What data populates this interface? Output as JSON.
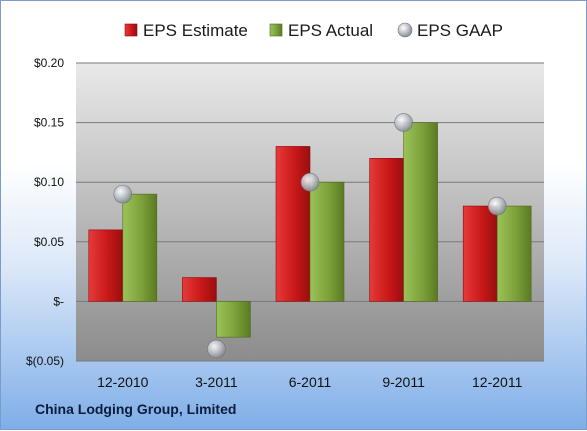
{
  "footer": {
    "company": "China Lodging Group, Limited"
  },
  "colors": {
    "estimate": "#cc1f1f",
    "actual": "#7da33a",
    "gaap": "#b8bcc4",
    "plot_bg_top": "#e9e9e9",
    "plot_bg_bottom": "#8c8c8c"
  },
  "chart_data": {
    "type": "bar",
    "title": "",
    "xlabel": "",
    "ylabel": "",
    "categories": [
      "12-2010",
      "3-2011",
      "6-2011",
      "9-2011",
      "12-2011"
    ],
    "series": [
      {
        "name": "EPS Estimate",
        "kind": "bar",
        "values": [
          0.06,
          0.02,
          0.13,
          0.12,
          0.08
        ]
      },
      {
        "name": "EPS Actual",
        "kind": "bar",
        "values": [
          0.09,
          -0.03,
          0.1,
          0.15,
          0.08
        ]
      },
      {
        "name": "EPS GAAP",
        "kind": "scatter",
        "values": [
          0.09,
          -0.04,
          0.1,
          0.15,
          0.08
        ]
      }
    ],
    "ylim": [
      -0.05,
      0.2
    ],
    "yticks": [
      -0.05,
      0,
      0.05,
      0.1,
      0.15,
      0.2
    ],
    "ytick_labels": [
      "$(0.05)",
      "$-",
      "$0.05",
      "$0.10",
      "$0.15",
      "$0.20"
    ],
    "grid": true,
    "legend": "top"
  }
}
